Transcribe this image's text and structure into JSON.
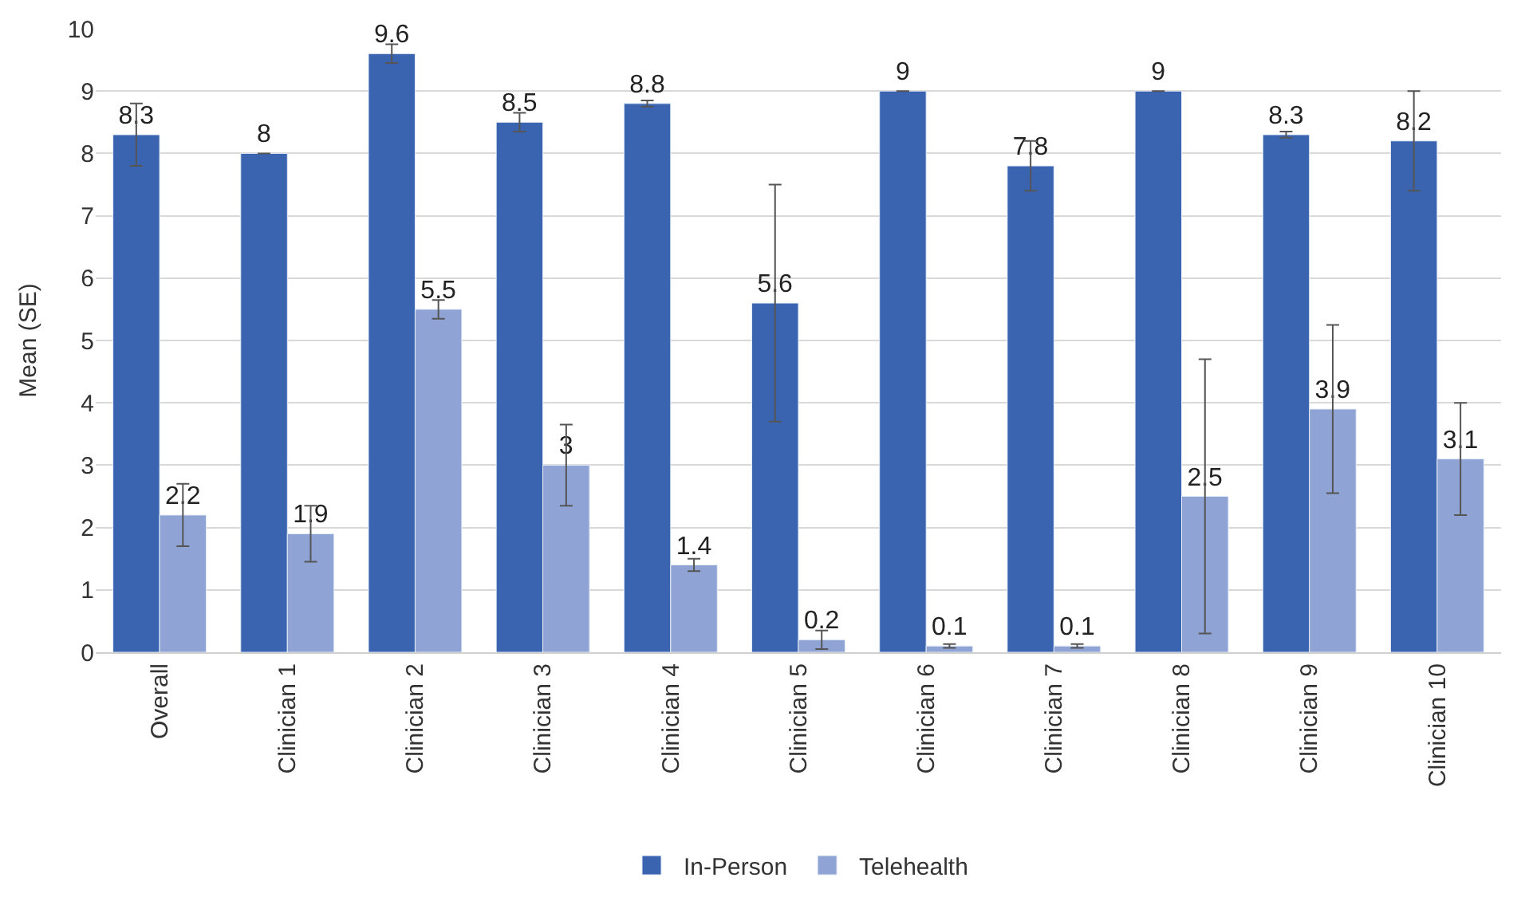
{
  "chart_data": {
    "type": "bar",
    "ylabel": "Mean (SE)",
    "categories": [
      "Overall",
      "Clinician 1",
      "Clinician 2",
      "Clinician 3",
      "Clinician 4",
      "Clinician 5",
      "Clinician 6",
      "Clinician 7",
      "Clinician 8",
      "Clinician 9",
      "Clinician 10"
    ],
    "series": [
      {
        "name": "In-Person",
        "color": "#3a64b0",
        "values": [
          8.3,
          8,
          9.6,
          8.5,
          8.8,
          5.6,
          9,
          7.8,
          9,
          8.3,
          8.2
        ],
        "errors": [
          0.5,
          0,
          0.15,
          0.15,
          0.05,
          1.9,
          0,
          0.4,
          0,
          0.05,
          0.8
        ]
      },
      {
        "name": "Telehealth",
        "color": "#8fa3d4",
        "values": [
          2.2,
          1.9,
          5.5,
          3,
          1.4,
          0.2,
          0.1,
          0.1,
          2.5,
          3.9,
          3.1
        ],
        "errors": [
          0.5,
          0.45,
          0.15,
          0.65,
          0.1,
          0.15,
          0.03,
          0.03,
          2.2,
          1.35,
          0.9
        ]
      }
    ],
    "ylim": [
      0,
      10
    ],
    "yticks": [
      0,
      1,
      2,
      3,
      4,
      5,
      6,
      7,
      8,
      9,
      10
    ],
    "grid": "y",
    "legend": "bottom",
    "data_labels": true
  }
}
